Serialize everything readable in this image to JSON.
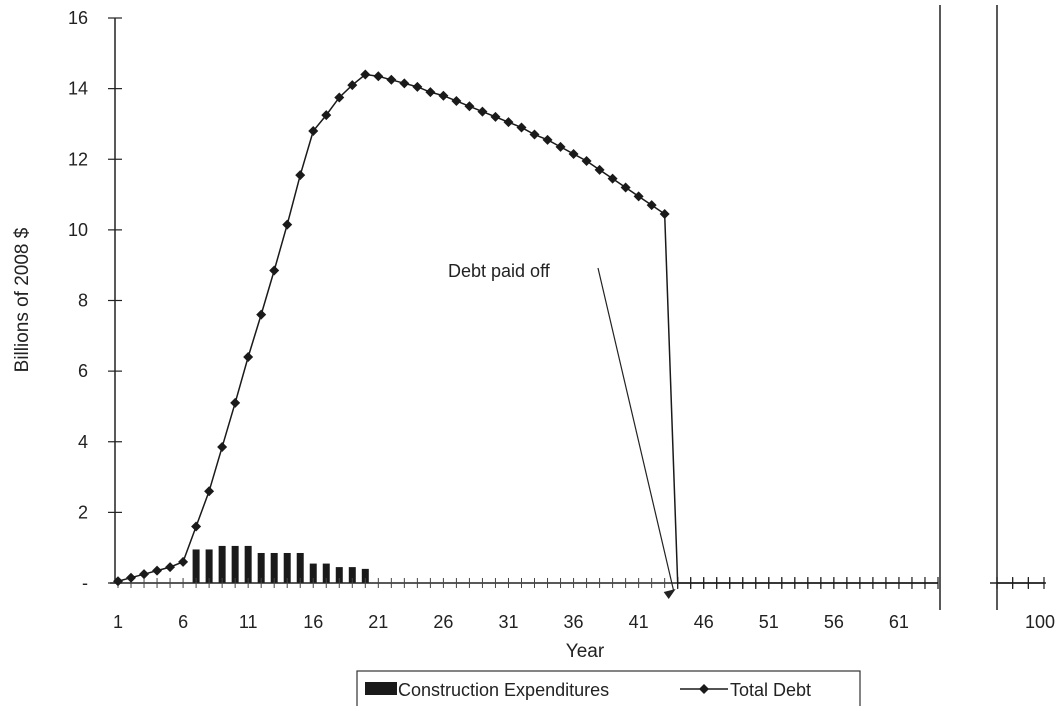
{
  "chart_data": {
    "type": "bar+line",
    "xlabel": "Year",
    "ylabel": "Billions of 2008 $",
    "ylim": [
      0,
      16
    ],
    "yticks": [
      {
        "value": 0,
        "label": "-"
      },
      {
        "value": 2,
        "label": "2"
      },
      {
        "value": 4,
        "label": "4"
      },
      {
        "value": 6,
        "label": "6"
      },
      {
        "value": 8,
        "label": "8"
      },
      {
        "value": 10,
        "label": "10"
      },
      {
        "value": 12,
        "label": "12"
      },
      {
        "value": 14,
        "label": "14"
      },
      {
        "value": 16,
        "label": "16"
      }
    ],
    "xticks": [
      "1",
      "6",
      "11",
      "16",
      "21",
      "26",
      "31",
      "36",
      "41",
      "46",
      "51",
      "56",
      "61",
      "100"
    ],
    "axis_break_after_year": 64,
    "grid": false,
    "legend": {
      "position": "bottom",
      "items": [
        "Construction Expenditures",
        "Total Debt"
      ]
    },
    "annotation": {
      "text": "Debt paid off",
      "points_to_year": 45
    },
    "series": [
      {
        "name": "Construction Expenditures",
        "type": "bar",
        "x": [
          7,
          8,
          9,
          10,
          11,
          12,
          13,
          14,
          15,
          16,
          17,
          18,
          19,
          20
        ],
        "values": [
          0.95,
          0.95,
          1.05,
          1.05,
          1.05,
          0.85,
          0.85,
          0.85,
          0.85,
          0.55,
          0.55,
          0.45,
          0.45,
          0.4
        ]
      },
      {
        "name": "Total Debt",
        "type": "line",
        "x": [
          1,
          2,
          3,
          4,
          5,
          6,
          7,
          8,
          9,
          10,
          11,
          12,
          13,
          14,
          15,
          16,
          17,
          18,
          19,
          20,
          21,
          22,
          23,
          24,
          25,
          26,
          27,
          28,
          29,
          30,
          31,
          32,
          33,
          34,
          35,
          36,
          37,
          38,
          39,
          40,
          41,
          42,
          43,
          44,
          45,
          46,
          47,
          48,
          49,
          50,
          51,
          52,
          53,
          54,
          55,
          56,
          57,
          58,
          59,
          60,
          61,
          62,
          63,
          64,
          97,
          98,
          99,
          100
        ],
        "values": [
          0.05,
          0.15,
          0.25,
          0.35,
          0.45,
          0.6,
          1.6,
          2.6,
          3.85,
          5.1,
          6.4,
          7.6,
          8.85,
          10.15,
          11.55,
          12.8,
          13.25,
          13.75,
          14.1,
          14.4,
          14.35,
          14.25,
          14.15,
          14.05,
          13.9,
          13.8,
          13.65,
          13.5,
          13.35,
          13.2,
          13.05,
          12.9,
          12.7,
          12.55,
          12.35,
          12.15,
          11.95,
          11.7,
          11.45,
          11.2,
          10.95,
          10.7,
          10.45,
          0,
          0,
          0,
          0,
          0,
          0,
          0,
          0,
          0,
          0,
          0,
          0,
          0,
          0,
          0,
          0,
          0,
          0,
          0,
          0,
          0,
          0,
          0,
          0,
          0
        ]
      }
    ]
  }
}
